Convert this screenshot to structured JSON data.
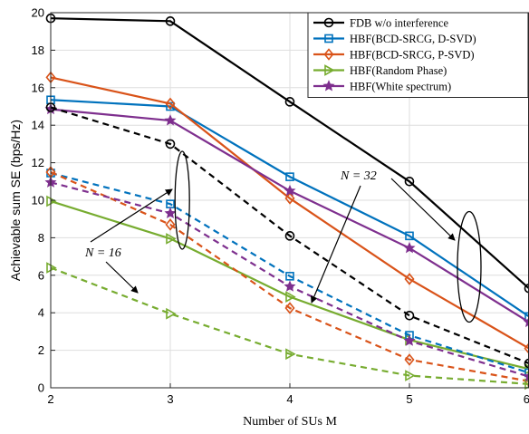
{
  "chart_data": {
    "type": "line",
    "xlabel": "Number of SUs M",
    "ylabel": "Achievable sum SE (bps/Hz)",
    "xlim": [
      2,
      6
    ],
    "ylim": [
      0,
      20
    ],
    "xticks": [
      "2",
      "3",
      "4",
      "5",
      "6"
    ],
    "yticks": [
      "0",
      "2",
      "4",
      "6",
      "8",
      "10",
      "12",
      "14",
      "16",
      "18",
      "20"
    ],
    "grid": true,
    "legend_position": "top-right",
    "x": [
      2,
      3,
      4,
      5,
      6
    ],
    "series": [
      {
        "name": "FDB w/o interference",
        "color": "#000000",
        "marker": "circle",
        "style": "solid",
        "values": [
          19.7,
          19.55,
          15.25,
          11.0,
          5.3
        ]
      },
      {
        "name": "HBF(BCD-SRCG, D-SVD)",
        "color": "#0072BD",
        "marker": "square",
        "style": "solid",
        "values": [
          15.35,
          15.0,
          11.25,
          8.1,
          3.8
        ]
      },
      {
        "name": "HBF(BCD-SRCG, P-SVD)",
        "color": "#D95319",
        "marker": "diamond",
        "style": "solid",
        "values": [
          16.55,
          15.15,
          10.1,
          5.8,
          2.1
        ]
      },
      {
        "name": "HBF(Random Phase)",
        "color": "#77AC30",
        "marker": "triangle-right",
        "style": "solid",
        "values": [
          9.95,
          7.95,
          4.85,
          2.55,
          1.0
        ]
      },
      {
        "name": "HBF(White spectrum)",
        "color": "#7E2F8E",
        "marker": "star",
        "style": "solid",
        "values": [
          14.85,
          14.25,
          10.5,
          7.45,
          3.5
        ]
      },
      {
        "color": "#000000",
        "marker": "circle",
        "style": "dashed",
        "values": [
          14.95,
          13.0,
          8.1,
          3.85,
          1.3
        ]
      },
      {
        "color": "#0072BD",
        "marker": "square",
        "style": "dashed",
        "values": [
          11.45,
          9.8,
          5.95,
          2.8,
          0.8
        ]
      },
      {
        "color": "#D95319",
        "marker": "diamond",
        "style": "dashed",
        "values": [
          11.5,
          8.7,
          4.25,
          1.5,
          0.35
        ]
      },
      {
        "color": "#77AC30",
        "marker": "triangle-right",
        "style": "dashed",
        "values": [
          6.4,
          3.95,
          1.8,
          0.65,
          0.2
        ]
      },
      {
        "color": "#7E2F8E",
        "marker": "star",
        "style": "dashed",
        "values": [
          10.95,
          9.3,
          5.4,
          2.5,
          0.6
        ]
      }
    ],
    "annotations": [
      {
        "text": "N = 16"
      },
      {
        "text": "N = 32"
      }
    ]
  }
}
